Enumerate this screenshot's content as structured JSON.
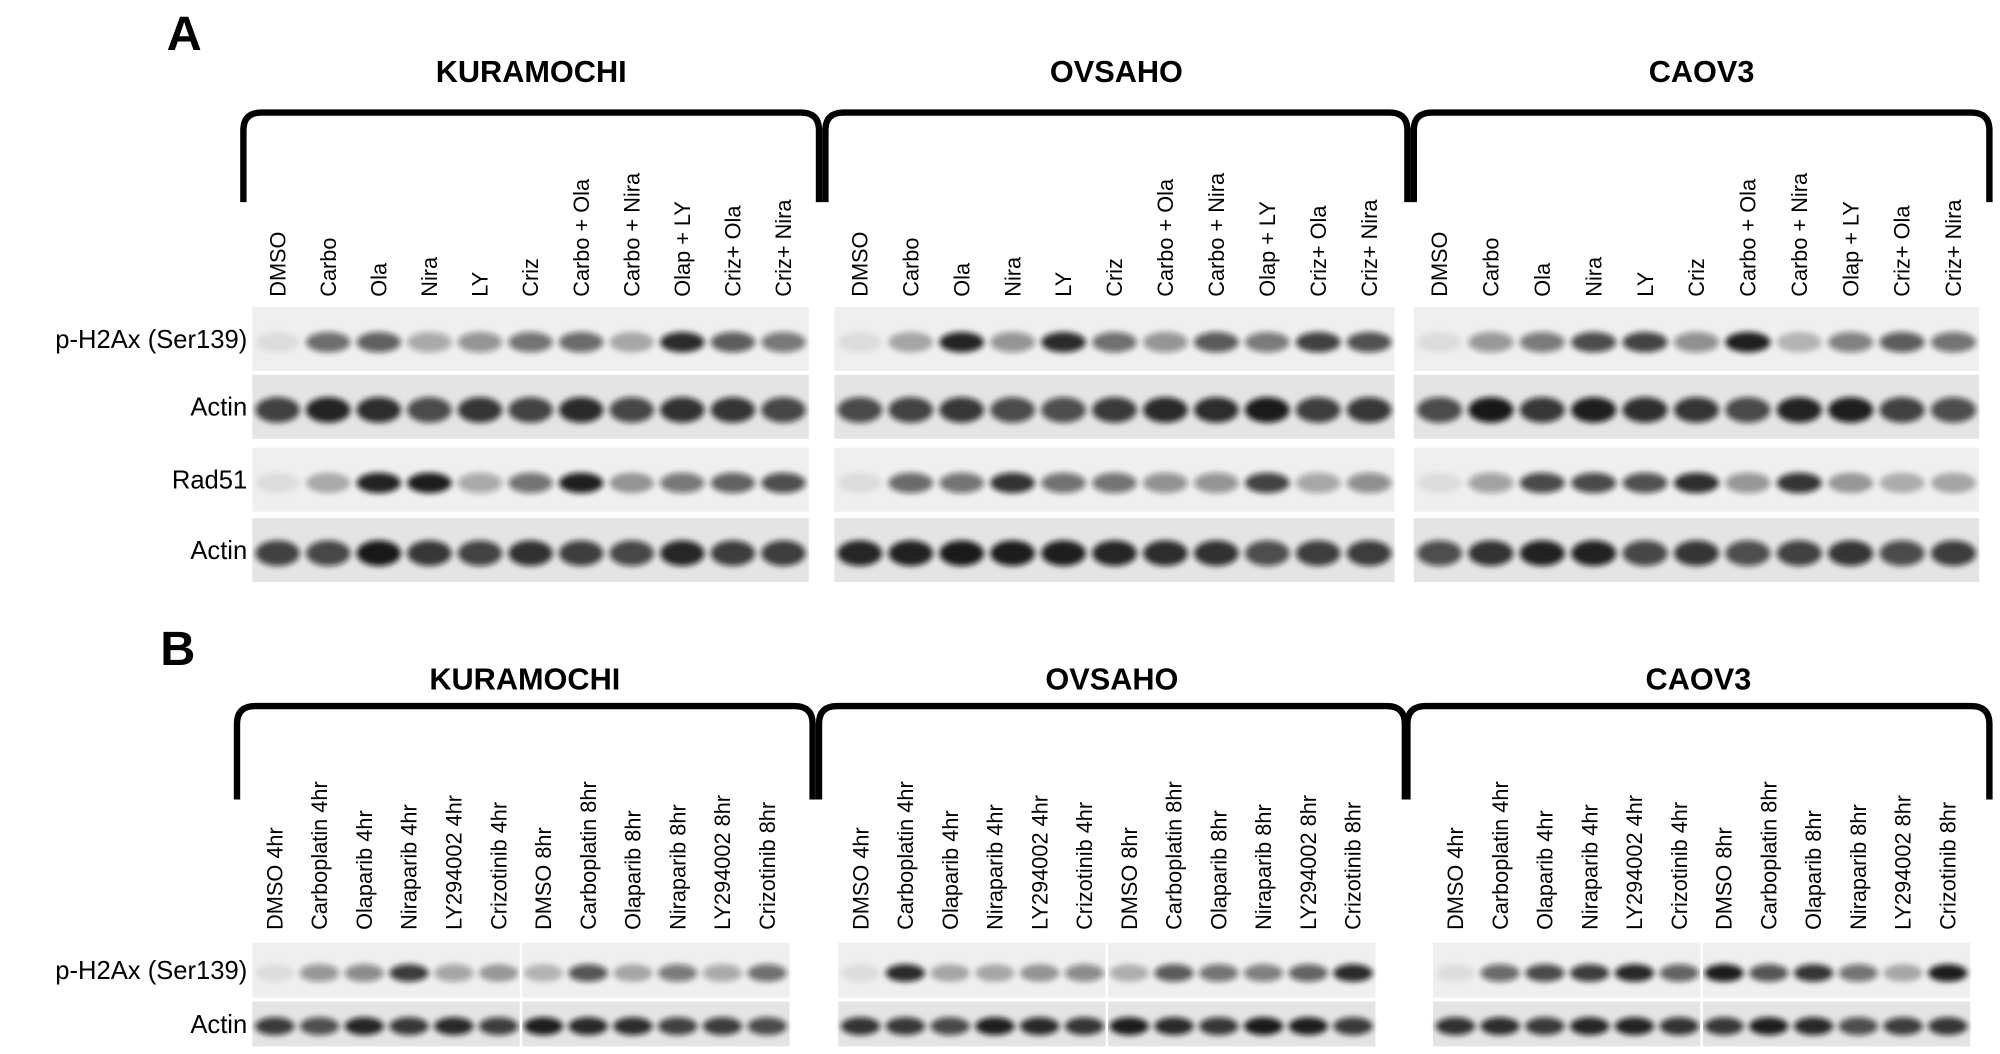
{
  "panels": [
    {
      "label": "A",
      "groups": [
        {
          "name": "KURAMOCHI",
          "lanes": [
            "DMSO",
            "Carbo",
            "Ola",
            "Nira",
            "LY",
            "Criz",
            "Carbo + Ola",
            "Carbo + Nira",
            "Olap + LY",
            "Criz+ Ola",
            "Criz+ Nira"
          ]
        },
        {
          "name": "OVSAHO",
          "lanes": [
            "DMSO",
            "Carbo",
            "Ola",
            "Nira",
            "LY",
            "Criz",
            "Carbo + Ola",
            "Carbo + Nira",
            "Olap + LY",
            "Criz+ Ola",
            "Criz+ Nira"
          ]
        },
        {
          "name": "CAOV3",
          "lanes": [
            "DMSO",
            "Carbo",
            "Ola",
            "Nira",
            "LY",
            "Criz",
            "Carbo + Ola",
            "Carbo + Nira",
            "Olap + LY",
            "Criz+ Ola",
            "Criz+ Nira"
          ]
        }
      ],
      "rows": [
        "p-H2Ax (Ser139)",
        "Actin",
        "Rad51",
        "Actin"
      ]
    },
    {
      "label": "B",
      "groups": [
        {
          "name": "KURAMOCHI",
          "lanes": [
            "DMSO 4hr",
            "Carboplatin  4hr",
            "Olaparib  4hr",
            "Niraparib  4hr",
            "LY294002  4hr",
            "Crizotinib  4hr",
            "DMSO 8hr",
            "Carboplatin  8hr",
            "Olaparib  8hr",
            "Niraparib  8hr",
            "LY294002  8hr",
            "Crizotinib  8hr"
          ]
        },
        {
          "name": "OVSAHO",
          "lanes": [
            "DMSO 4hr",
            "Carboplatin  4hr",
            "Olaparib  4hr",
            "Niraparib  4hr",
            "LY294002  4hr",
            "Crizotinib  4hr",
            "DMSO 8hr",
            "Carboplatin  8hr",
            "Olaparib  8hr",
            "Niraparib  8hr",
            "LY294002  8hr",
            "Crizotinib  8hr"
          ]
        },
        {
          "name": "CAOV3",
          "lanes": [
            "DMSO 4hr",
            "Carboplatin  4hr",
            "Olaparib  4hr",
            "Niraparib  4hr",
            "LY294002  4hr",
            "Crizotinib  4hr",
            "DMSO 8hr",
            "Carboplatin  8hr",
            "Olaparib  8hr",
            "Niraparib  8hr",
            "LY294002  8hr",
            "Crizotinib  8hr"
          ]
        }
      ],
      "rows": [
        "p-H2Ax (Ser139)",
        "Actin"
      ]
    }
  ]
}
